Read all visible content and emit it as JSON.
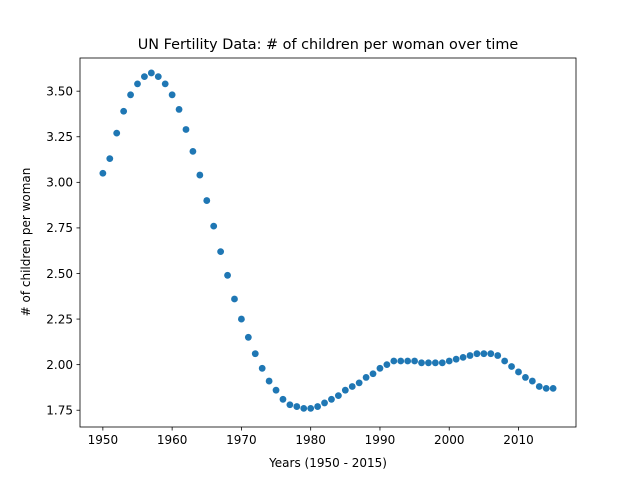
{
  "chart_data": {
    "type": "scatter",
    "title": "UN Fertility Data: # of children per woman over time",
    "xlabel": "Years (1950 - 2015)",
    "ylabel": "# of children per woman",
    "xlim": [
      1946.7,
      2018.3
    ],
    "ylim": [
      1.658,
      3.682
    ],
    "xticks": [
      1950,
      1960,
      1970,
      1980,
      1990,
      2000,
      2010
    ],
    "yticks": [
      "1.75",
      "2.00",
      "2.25",
      "2.50",
      "2.75",
      "3.00",
      "3.25",
      "3.50"
    ],
    "grid": false,
    "legend": "none",
    "marker_color": "#1f77b4",
    "series": [
      {
        "x": [
          1950,
          1951,
          1952,
          1953,
          1954,
          1955,
          1956,
          1957,
          1958,
          1959,
          1960,
          1961,
          1962,
          1963,
          1964,
          1965,
          1966,
          1967,
          1968,
          1969,
          1970,
          1971,
          1972,
          1973,
          1974,
          1975,
          1976,
          1977,
          1978,
          1979,
          1980,
          1981,
          1982,
          1983,
          1984,
          1985,
          1986,
          1987,
          1988,
          1989,
          1990,
          1991,
          1992,
          1993,
          1994,
          1995,
          1996,
          1997,
          1998,
          1999,
          2000,
          2001,
          2002,
          2003,
          2004,
          2005,
          2006,
          2007,
          2008,
          2009,
          2010,
          2011,
          2012,
          2013,
          2014,
          2015
        ],
        "y": [
          3.05,
          3.13,
          3.27,
          3.39,
          3.48,
          3.54,
          3.58,
          3.6,
          3.58,
          3.54,
          3.48,
          3.4,
          3.29,
          3.17,
          3.04,
          2.9,
          2.76,
          2.62,
          2.49,
          2.36,
          2.25,
          2.15,
          2.06,
          1.98,
          1.91,
          1.86,
          1.81,
          1.78,
          1.77,
          1.76,
          1.76,
          1.77,
          1.79,
          1.81,
          1.83,
          1.86,
          1.88,
          1.9,
          1.93,
          1.95,
          1.98,
          2.0,
          2.02,
          2.02,
          2.02,
          2.02,
          2.01,
          2.01,
          2.01,
          2.01,
          2.02,
          2.03,
          2.04,
          2.05,
          2.06,
          2.06,
          2.06,
          2.05,
          2.02,
          1.99,
          1.96,
          1.93,
          1.91,
          1.88,
          1.87,
          1.87
        ]
      }
    ]
  }
}
